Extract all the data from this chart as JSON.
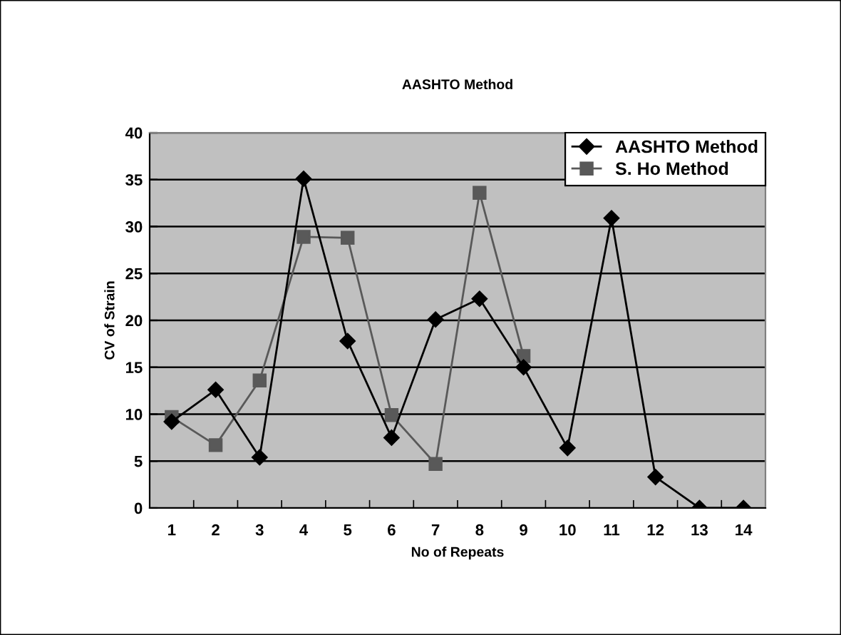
{
  "chart_data": {
    "type": "line",
    "title": "AASHTO Method",
    "xlabel": "No of Repeats",
    "ylabel": "CV of Strain",
    "categories": [
      "1",
      "2",
      "3",
      "4",
      "5",
      "6",
      "7",
      "8",
      "9",
      "10",
      "11",
      "12",
      "13",
      "14"
    ],
    "series": [
      {
        "name": "AASHTO Method",
        "color": "#000000",
        "marker": "diamond",
        "values": [
          9.2,
          12.6,
          5.4,
          35.1,
          17.8,
          7.5,
          20.1,
          22.3,
          15.0,
          6.4,
          30.9,
          3.3,
          0,
          0
        ]
      },
      {
        "name": "S. Ho Method",
        "color": "#595959",
        "marker": "square",
        "values": [
          9.7,
          6.7,
          13.6,
          28.9,
          28.8,
          9.9,
          4.7,
          33.6,
          16.2,
          null,
          null,
          null,
          null,
          null
        ]
      }
    ],
    "ylim": [
      0,
      40
    ],
    "yticks": [
      0,
      5,
      10,
      15,
      20,
      25,
      30,
      35,
      40
    ],
    "grid": "y",
    "legend": "top right",
    "line_style": "solid"
  }
}
